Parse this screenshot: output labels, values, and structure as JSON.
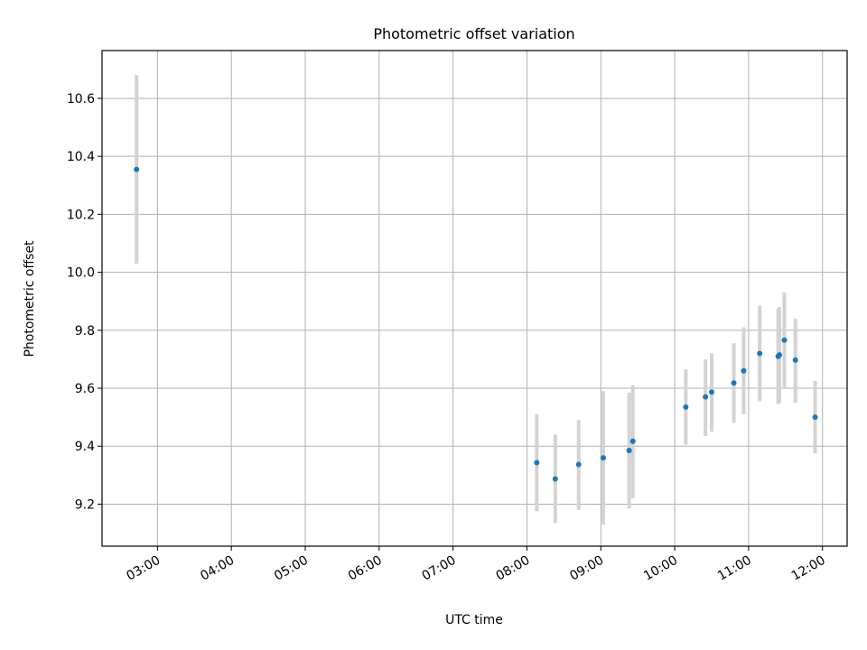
{
  "chart_data": {
    "type": "scatter",
    "title": "Photometric offset variation",
    "xlabel": "UTC time",
    "ylabel": "Photometric offset",
    "x_unit": "UTC time (HH:MM)",
    "xlim": [
      "02:15",
      "12:20"
    ],
    "ylim": [
      9.055,
      10.765
    ],
    "xticks": [
      "03:00",
      "04:00",
      "05:00",
      "06:00",
      "07:00",
      "08:00",
      "09:00",
      "10:00",
      "11:00",
      "12:00"
    ],
    "yticks": [
      9.2,
      9.4,
      9.6,
      9.8,
      10.0,
      10.2,
      10.4,
      10.6
    ],
    "ytick_labels": [
      "9.2",
      "9.4",
      "9.6",
      "9.8",
      "10.0",
      "10.2",
      "10.4",
      "10.6"
    ],
    "grid": true,
    "marker_color": "#1f77b4",
    "errorbar_color": "#d3d3d3",
    "points": [
      {
        "x": "02:43",
        "y": 10.355,
        "err_low": 10.03,
        "err_high": 10.68
      },
      {
        "x": "08:08",
        "y": 9.343,
        "err_low": 9.175,
        "err_high": 9.51
      },
      {
        "x": "08:23",
        "y": 9.287,
        "err_low": 9.135,
        "err_high": 9.44
      },
      {
        "x": "08:42",
        "y": 9.337,
        "err_low": 9.18,
        "err_high": 9.49
      },
      {
        "x": "09:02",
        "y": 9.36,
        "err_low": 9.13,
        "err_high": 9.59
      },
      {
        "x": "09:23",
        "y": 9.385,
        "err_low": 9.185,
        "err_high": 9.585
      },
      {
        "x": "09:26",
        "y": 9.417,
        "err_low": 9.22,
        "err_high": 9.61
      },
      {
        "x": "10:09",
        "y": 9.535,
        "err_low": 9.405,
        "err_high": 9.665
      },
      {
        "x": "10:25",
        "y": 9.57,
        "err_low": 9.435,
        "err_high": 9.7
      },
      {
        "x": "10:30",
        "y": 9.587,
        "err_low": 9.45,
        "err_high": 9.72
      },
      {
        "x": "10:48",
        "y": 9.618,
        "err_low": 9.48,
        "err_high": 9.755
      },
      {
        "x": "10:56",
        "y": 9.66,
        "err_low": 9.51,
        "err_high": 9.81
      },
      {
        "x": "11:09",
        "y": 9.72,
        "err_low": 9.555,
        "err_high": 9.885
      },
      {
        "x": "11:24",
        "y": 9.71,
        "err_low": 9.545,
        "err_high": 9.875
      },
      {
        "x": "11:25",
        "y": 9.715,
        "err_low": 9.55,
        "err_high": 9.88
      },
      {
        "x": "11:29",
        "y": 9.766,
        "err_low": 9.6,
        "err_high": 9.93
      },
      {
        "x": "11:38",
        "y": 9.697,
        "err_low": 9.55,
        "err_high": 9.84
      },
      {
        "x": "11:54",
        "y": 9.5,
        "err_low": 9.375,
        "err_high": 9.625
      }
    ]
  }
}
